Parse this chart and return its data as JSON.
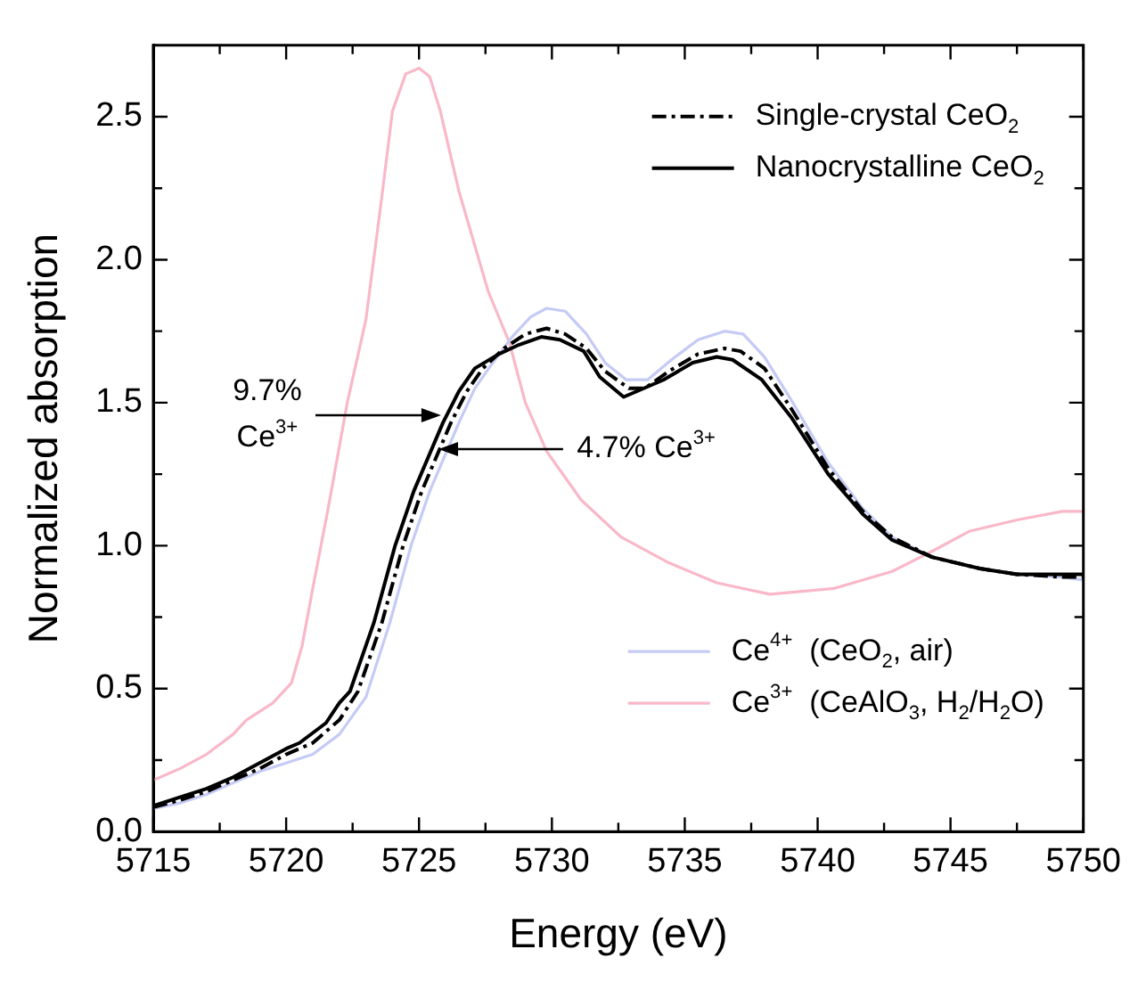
{
  "chart_data": {
    "type": "line",
    "xlabel": "Energy (eV)",
    "ylabel": "Normalized absorption",
    "xlim": [
      5715,
      5750
    ],
    "xticks": [
      5715,
      5720,
      5725,
      5730,
      5735,
      5740,
      5745,
      5750
    ],
    "ylim": [
      0,
      2.75
    ],
    "yticks": [
      {
        "value": 0,
        "label": "0.0"
      },
      {
        "value": 0.5,
        "label": "0.5"
      },
      {
        "value": 1,
        "label": "1.0"
      },
      {
        "value": 1.5,
        "label": "1.5"
      },
      {
        "value": 2,
        "label": "2.0"
      },
      {
        "value": 2.5,
        "label": "2.5"
      }
    ],
    "grid": false,
    "legend": "right",
    "marker": "none",
    "series": [
      {
        "name": "Single-crystal CeO$_{2}$",
        "color": "#000000",
        "line_style": "dashed",
        "x": [
          5715,
          5716,
          5717,
          5718,
          5719,
          5720,
          5721,
          5722,
          5722.7,
          5723.6,
          5724.4,
          5725.1,
          5726.2,
          5726.8,
          5727.4,
          5728.2,
          5729,
          5729.8,
          5730.5,
          5731.3,
          5732,
          5732.9,
          5733.5,
          5734.4,
          5735.5,
          5736.5,
          5737.1,
          5738,
          5739,
          5740.4,
          5741.7,
          5742.8,
          5744.3,
          5746.1,
          5747.5,
          5749.2,
          5750
        ],
        "values": [
          0.085,
          0.11,
          0.14,
          0.18,
          0.22,
          0.27,
          0.31,
          0.39,
          0.49,
          0.73,
          1.0,
          1.19,
          1.43,
          1.54,
          1.62,
          1.69,
          1.74,
          1.76,
          1.74,
          1.69,
          1.61,
          1.55,
          1.55,
          1.61,
          1.67,
          1.69,
          1.68,
          1.62,
          1.48,
          1.27,
          1.12,
          1.03,
          0.96,
          0.92,
          0.9,
          0.89,
          0.89
        ]
      },
      {
        "name": "Nanocrystalline CeO$_{2}$",
        "color": "#000000",
        "line_style": "solid",
        "x": [
          5715,
          5716,
          5717,
          5718,
          5719,
          5720,
          5720.5,
          5721.5,
          5722,
          5722.4,
          5723.3,
          5724.1,
          5724.8,
          5725.9,
          5726.5,
          5727.1,
          5728,
          5728.7,
          5729.6,
          5730.3,
          5731.2,
          5731.8,
          5732.7,
          5734.2,
          5735.3,
          5736.2,
          5736.8,
          5737.9,
          5739,
          5740.4,
          5741.7,
          5742.8,
          5744.3,
          5746.1,
          5747.5,
          5749.2,
          5750
        ],
        "values": [
          0.09,
          0.12,
          0.15,
          0.19,
          0.24,
          0.29,
          0.31,
          0.38,
          0.45,
          0.49,
          0.73,
          1.0,
          1.19,
          1.43,
          1.54,
          1.62,
          1.67,
          1.7,
          1.73,
          1.72,
          1.68,
          1.59,
          1.52,
          1.58,
          1.64,
          1.66,
          1.65,
          1.58,
          1.45,
          1.25,
          1.11,
          1.02,
          0.96,
          0.92,
          0.9,
          0.9,
          0.9
        ]
      },
      {
        "name": "Ce$^{4+}$  (CeO$_{2}$, air)",
        "color": "#c5cbf5",
        "line_style": "solid",
        "x": [
          5715,
          5716,
          5717,
          5718,
          5719,
          5720,
          5721,
          5722,
          5723,
          5723.9,
          5724.7,
          5725.4,
          5726.5,
          5727.1,
          5727.7,
          5728.5,
          5729.2,
          5729.8,
          5730.5,
          5731.3,
          5732,
          5732.8,
          5733.6,
          5734.5,
          5735.5,
          5736.5,
          5737.2,
          5738,
          5739,
          5740.4,
          5741.7,
          5742.8,
          5744.3,
          5746.1,
          5747.5,
          5749.2,
          5750
        ],
        "values": [
          0.08,
          0.1,
          0.13,
          0.17,
          0.21,
          0.24,
          0.27,
          0.34,
          0.47,
          0.73,
          1.0,
          1.19,
          1.43,
          1.55,
          1.63,
          1.73,
          1.8,
          1.83,
          1.82,
          1.74,
          1.64,
          1.58,
          1.58,
          1.65,
          1.72,
          1.75,
          1.74,
          1.66,
          1.51,
          1.29,
          1.13,
          1.03,
          0.96,
          0.92,
          0.9,
          0.89,
          0.88
        ]
      },
      {
        "name": "Ce$^{3+}$  (CeAlO$_{3}$, H$_{2}$/H$_{2}$O)",
        "color": "#f9b8c8",
        "line_style": "solid",
        "x": [
          5715,
          5716,
          5717,
          5718,
          5718.5,
          5719.5,
          5720.2,
          5720.6,
          5721,
          5721.6,
          5722.3,
          5723,
          5723.6,
          5724,
          5724.5,
          5725,
          5725.4,
          5725.8,
          5726.5,
          5727.6,
          5728.4,
          5729,
          5729.8,
          5731.1,
          5732.6,
          5734.4,
          5736.2,
          5738.2,
          5740.6,
          5742.8,
          5744.3,
          5745.7,
          5747.5,
          5749.2,
          5750
        ],
        "values": [
          0.18,
          0.22,
          0.27,
          0.34,
          0.39,
          0.45,
          0.52,
          0.65,
          0.85,
          1.14,
          1.5,
          1.79,
          2.22,
          2.52,
          2.65,
          2.67,
          2.64,
          2.52,
          2.24,
          1.89,
          1.71,
          1.5,
          1.33,
          1.16,
          1.03,
          0.94,
          0.87,
          0.83,
          0.85,
          0.91,
          0.98,
          1.05,
          1.09,
          1.12,
          1.12
        ]
      }
    ],
    "annotations": [
      "9.7%\nCe$^{3+}$",
      "4.7% Ce$^{3+}$"
    ]
  }
}
